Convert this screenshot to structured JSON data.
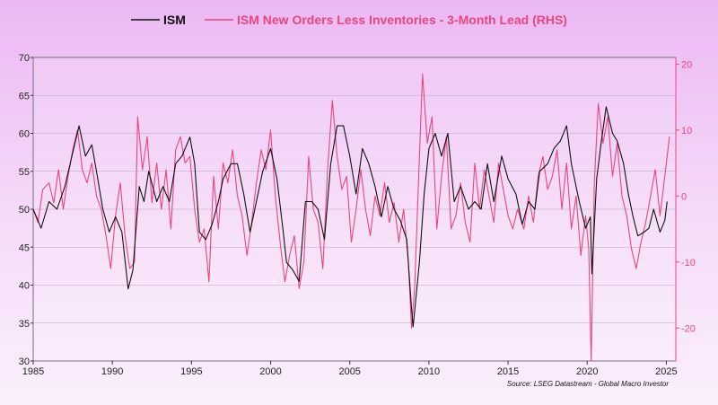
{
  "chart_data": {
    "type": "line",
    "legend": {
      "placement": "top-center"
    },
    "grid": {
      "horizontal": true,
      "vertical": false
    },
    "source": "Source: LSEG Datastream - Global Macro Investor",
    "x_range": [
      1985,
      2025.6
    ],
    "x_ticks": [
      "1985",
      "1990",
      "1995",
      "2000",
      "2005",
      "2010",
      "2015",
      "2020",
      "2025"
    ],
    "y_left": {
      "range": [
        30,
        70
      ],
      "ticks": [
        "30",
        "35",
        "40",
        "45",
        "50",
        "55",
        "60",
        "65",
        "70"
      ]
    },
    "y_right": {
      "range": [
        -25,
        21
      ],
      "ticks": [
        "-20",
        "-10",
        "0",
        "10",
        "20"
      ],
      "color": "#e8477c"
    },
    "series": [
      {
        "name": "ISM",
        "axis": "left",
        "color": "#111111",
        "points": [
          [
            1985.0,
            50
          ],
          [
            1985.5,
            47.5
          ],
          [
            1986.0,
            51
          ],
          [
            1986.5,
            50
          ],
          [
            1987.0,
            53
          ],
          [
            1987.5,
            57.5
          ],
          [
            1987.9,
            61
          ],
          [
            1988.3,
            57
          ],
          [
            1988.7,
            58.5
          ],
          [
            1989.0,
            55
          ],
          [
            1989.4,
            50
          ],
          [
            1989.8,
            47
          ],
          [
            1990.2,
            49
          ],
          [
            1990.6,
            47
          ],
          [
            1991.0,
            39.5
          ],
          [
            1991.3,
            42
          ],
          [
            1991.7,
            53
          ],
          [
            1992.0,
            51
          ],
          [
            1992.3,
            55
          ],
          [
            1992.8,
            51
          ],
          [
            1993.2,
            53
          ],
          [
            1993.6,
            51
          ],
          [
            1994.0,
            56
          ],
          [
            1994.4,
            57
          ],
          [
            1994.9,
            59.5
          ],
          [
            1995.2,
            56
          ],
          [
            1995.5,
            47
          ],
          [
            1995.9,
            46
          ],
          [
            1996.3,
            48
          ],
          [
            1996.7,
            51
          ],
          [
            1997.0,
            54
          ],
          [
            1997.5,
            56
          ],
          [
            1997.9,
            56
          ],
          [
            1998.3,
            52
          ],
          [
            1998.7,
            47
          ],
          [
            1999.0,
            50
          ],
          [
            1999.5,
            55
          ],
          [
            2000.0,
            58
          ],
          [
            2000.4,
            54
          ],
          [
            2000.8,
            47
          ],
          [
            2001.0,
            43
          ],
          [
            2001.4,
            42
          ],
          [
            2001.8,
            40.5
          ],
          [
            2002.2,
            51
          ],
          [
            2002.6,
            51
          ],
          [
            2003.0,
            50
          ],
          [
            2003.4,
            46
          ],
          [
            2003.8,
            56
          ],
          [
            2004.2,
            61
          ],
          [
            2004.6,
            61
          ],
          [
            2005.0,
            57
          ],
          [
            2005.4,
            52
          ],
          [
            2005.8,
            58
          ],
          [
            2006.2,
            56
          ],
          [
            2006.6,
            53
          ],
          [
            2007.0,
            49
          ],
          [
            2007.4,
            53
          ],
          [
            2007.8,
            50
          ],
          [
            2008.2,
            48.5
          ],
          [
            2008.6,
            46
          ],
          [
            2008.9,
            37
          ],
          [
            2009.0,
            34.5
          ],
          [
            2009.4,
            43
          ],
          [
            2009.7,
            52
          ],
          [
            2010.0,
            58
          ],
          [
            2010.4,
            60
          ],
          [
            2010.8,
            57
          ],
          [
            2011.2,
            60
          ],
          [
            2011.6,
            51
          ],
          [
            2012.0,
            53
          ],
          [
            2012.5,
            50
          ],
          [
            2012.9,
            51
          ],
          [
            2013.3,
            50
          ],
          [
            2013.7,
            56
          ],
          [
            2014.1,
            51
          ],
          [
            2014.6,
            57
          ],
          [
            2015.0,
            54
          ],
          [
            2015.5,
            52
          ],
          [
            2015.9,
            48
          ],
          [
            2016.3,
            51
          ],
          [
            2016.7,
            50
          ],
          [
            2017.0,
            55
          ],
          [
            2017.5,
            56
          ],
          [
            2017.9,
            58
          ],
          [
            2018.3,
            59
          ],
          [
            2018.7,
            61
          ],
          [
            2019.0,
            56
          ],
          [
            2019.5,
            51
          ],
          [
            2019.9,
            47.5
          ],
          [
            2020.2,
            49
          ],
          [
            2020.3,
            41.5
          ],
          [
            2020.6,
            54
          ],
          [
            2020.9,
            59
          ],
          [
            2021.2,
            63.5
          ],
          [
            2021.6,
            60
          ],
          [
            2021.9,
            59
          ],
          [
            2022.3,
            56
          ],
          [
            2022.6,
            52
          ],
          [
            2022.9,
            49
          ],
          [
            2023.2,
            46.5
          ],
          [
            2023.6,
            47
          ],
          [
            2023.9,
            47.5
          ],
          [
            2024.2,
            50
          ],
          [
            2024.6,
            47
          ],
          [
            2024.9,
            48.5
          ],
          [
            2025.05,
            51
          ]
        ]
      },
      {
        "name": "ISM New Orders Less Inventories - 3-Month Lead (RHS)",
        "axis": "right",
        "color": "#e8477c",
        "points": [
          [
            1985.0,
            -2
          ],
          [
            1985.3,
            -4
          ],
          [
            1985.6,
            1
          ],
          [
            1986.0,
            2
          ],
          [
            1986.3,
            -1
          ],
          [
            1986.6,
            4
          ],
          [
            1986.9,
            -2
          ],
          [
            1987.2,
            3
          ],
          [
            1987.5,
            7
          ],
          [
            1987.8,
            10
          ],
          [
            1988.1,
            4
          ],
          [
            1988.4,
            2
          ],
          [
            1988.7,
            5
          ],
          [
            1989.0,
            0
          ],
          [
            1989.3,
            -2
          ],
          [
            1989.6,
            -6
          ],
          [
            1989.9,
            -11
          ],
          [
            1990.2,
            -3
          ],
          [
            1990.5,
            2
          ],
          [
            1990.8,
            -6
          ],
          [
            1991.1,
            -11
          ],
          [
            1991.4,
            -10
          ],
          [
            1991.6,
            12
          ],
          [
            1991.9,
            4
          ],
          [
            1992.2,
            9
          ],
          [
            1992.5,
            -1
          ],
          [
            1992.8,
            5
          ],
          [
            1993.1,
            -2
          ],
          [
            1993.4,
            4
          ],
          [
            1993.7,
            -5
          ],
          [
            1994.0,
            7
          ],
          [
            1994.3,
            9
          ],
          [
            1994.6,
            5
          ],
          [
            1994.9,
            6
          ],
          [
            1995.2,
            -2
          ],
          [
            1995.5,
            -7
          ],
          [
            1995.8,
            -5
          ],
          [
            1996.1,
            -13
          ],
          [
            1996.4,
            3
          ],
          [
            1996.7,
            -5
          ],
          [
            1997.0,
            5
          ],
          [
            1997.3,
            2
          ],
          [
            1997.6,
            7
          ],
          [
            1997.9,
            0
          ],
          [
            1998.2,
            -3
          ],
          [
            1998.5,
            -9
          ],
          [
            1998.8,
            -4
          ],
          [
            1999.1,
            2
          ],
          [
            1999.4,
            7
          ],
          [
            1999.7,
            4
          ],
          [
            2000.0,
            10
          ],
          [
            2000.3,
            0
          ],
          [
            2000.6,
            -7
          ],
          [
            2000.9,
            -13
          ],
          [
            2001.2,
            -9
          ],
          [
            2001.5,
            -6
          ],
          [
            2001.8,
            -14
          ],
          [
            2002.1,
            -10
          ],
          [
            2002.4,
            6
          ],
          [
            2002.7,
            -2
          ],
          [
            2003.0,
            -4
          ],
          [
            2003.3,
            -11
          ],
          [
            2003.6,
            4
          ],
          [
            2003.9,
            14.5
          ],
          [
            2004.2,
            6
          ],
          [
            2004.5,
            1
          ],
          [
            2004.8,
            3
          ],
          [
            2005.1,
            -7
          ],
          [
            2005.4,
            -2
          ],
          [
            2005.7,
            4
          ],
          [
            2006.0,
            -2
          ],
          [
            2006.3,
            -6
          ],
          [
            2006.6,
            0
          ],
          [
            2006.9,
            -3
          ],
          [
            2007.2,
            2
          ],
          [
            2007.5,
            -4
          ],
          [
            2007.8,
            -1
          ],
          [
            2008.1,
            -7
          ],
          [
            2008.4,
            -2
          ],
          [
            2008.7,
            -10
          ],
          [
            2008.9,
            -20
          ],
          [
            2009.1,
            -14
          ],
          [
            2009.4,
            6
          ],
          [
            2009.6,
            18.5
          ],
          [
            2009.9,
            8
          ],
          [
            2010.2,
            12
          ],
          [
            2010.5,
            -5
          ],
          [
            2010.8,
            3
          ],
          [
            2011.1,
            9
          ],
          [
            2011.4,
            -5
          ],
          [
            2011.7,
            -3
          ],
          [
            2012.0,
            2
          ],
          [
            2012.3,
            -4
          ],
          [
            2012.6,
            -7
          ],
          [
            2012.9,
            5
          ],
          [
            2013.2,
            -2
          ],
          [
            2013.5,
            4
          ],
          [
            2013.8,
            0
          ],
          [
            2014.1,
            -4
          ],
          [
            2014.4,
            5
          ],
          [
            2014.7,
            1
          ],
          [
            2015.0,
            -3
          ],
          [
            2015.3,
            -5
          ],
          [
            2015.6,
            -2
          ],
          [
            2016.0,
            -5
          ],
          [
            2016.3,
            0
          ],
          [
            2016.6,
            -4
          ],
          [
            2016.9,
            3
          ],
          [
            2017.2,
            6
          ],
          [
            2017.5,
            1
          ],
          [
            2017.8,
            3
          ],
          [
            2018.1,
            7
          ],
          [
            2018.4,
            -2
          ],
          [
            2018.7,
            5
          ],
          [
            2019.0,
            -5
          ],
          [
            2019.3,
            0
          ],
          [
            2019.6,
            -9
          ],
          [
            2019.9,
            -3
          ],
          [
            2020.1,
            -8
          ],
          [
            2020.25,
            -25
          ],
          [
            2020.45,
            2
          ],
          [
            2020.7,
            14
          ],
          [
            2021.0,
            8
          ],
          [
            2021.3,
            12
          ],
          [
            2021.6,
            3
          ],
          [
            2021.9,
            8
          ],
          [
            2022.2,
            0
          ],
          [
            2022.5,
            -3
          ],
          [
            2022.8,
            -8
          ],
          [
            2023.1,
            -11
          ],
          [
            2023.4,
            -7
          ],
          [
            2023.7,
            -4
          ],
          [
            2024.0,
            0
          ],
          [
            2024.3,
            4
          ],
          [
            2024.6,
            -3
          ],
          [
            2024.9,
            3
          ],
          [
            2025.2,
            9
          ]
        ]
      }
    ]
  }
}
